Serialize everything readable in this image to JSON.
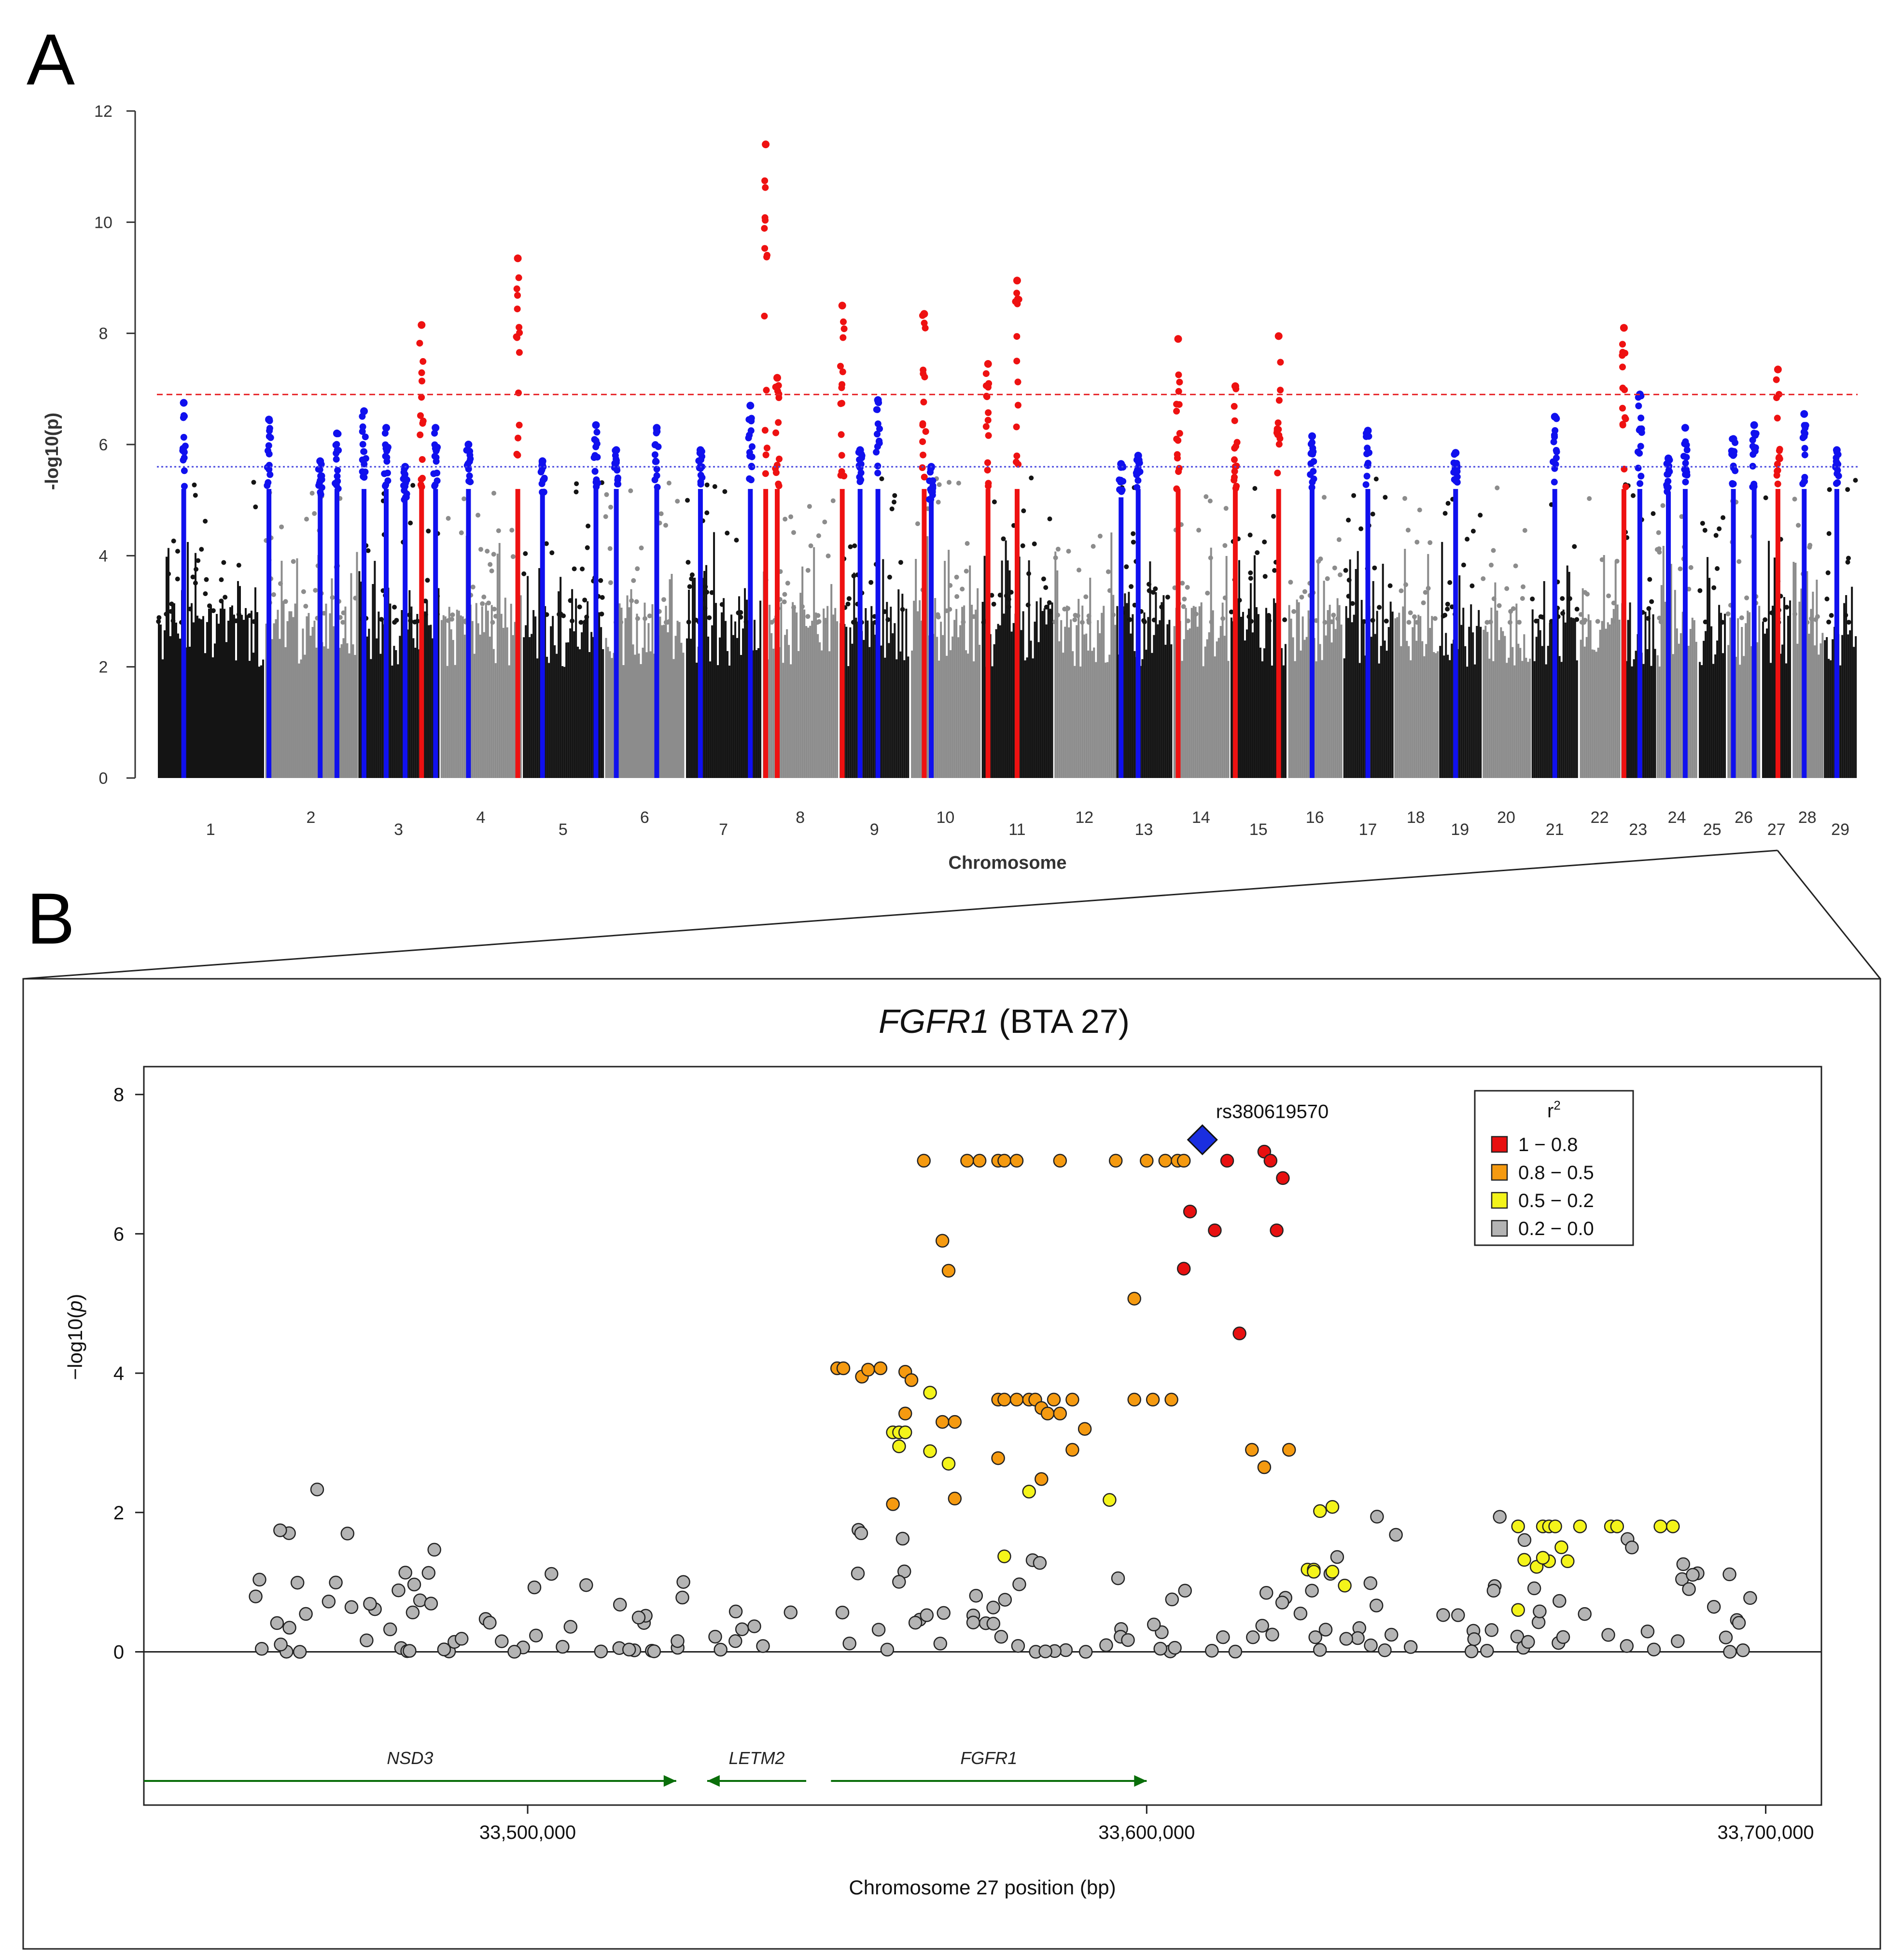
{
  "panel_a_label": "A",
  "panel_b_label": "B",
  "chart_data": [
    {
      "type": "scatter",
      "name": "manhattan",
      "ylabel": "-log10(p)",
      "xlabel": "Chromosome",
      "ylim": [
        0,
        12
      ],
      "yticks": [
        0,
        2,
        4,
        6,
        8,
        10,
        12
      ],
      "genome_wide_threshold": 6.9,
      "suggestive_threshold": 5.6,
      "threshold_colors": {
        "genome_wide": "#e8262a",
        "suggestive": "#4a4ae0"
      },
      "chromosomes": [
        "1",
        "2",
        "3",
        "4",
        "5",
        "6",
        "7",
        "8",
        "9",
        "10",
        "11",
        "12",
        "13",
        "14",
        "15",
        "16",
        "17",
        "18",
        "19",
        "20",
        "21",
        "22",
        "23",
        "24",
        "25",
        "26",
        "27",
        "28",
        "29"
      ],
      "colors": {
        "odd": "#141414",
        "even": "#8c8c8c",
        "blue_snps": "#1010ee",
        "red_snps": "#ee1111"
      },
      "highlighted_loci": [
        {
          "chr": "1",
          "pos": 0.25,
          "color": "blue",
          "max": 6.75
        },
        {
          "chr": "2",
          "pos": 0.05,
          "color": "blue",
          "max": 6.45
        },
        {
          "chr": "2",
          "pos": 0.6,
          "color": "blue",
          "max": 5.7
        },
        {
          "chr": "2",
          "pos": 0.78,
          "color": "blue",
          "max": 6.2
        },
        {
          "chr": "3",
          "pos": 0.08,
          "color": "blue",
          "max": 6.6
        },
        {
          "chr": "3",
          "pos": 0.35,
          "color": "blue",
          "max": 6.3
        },
        {
          "chr": "3",
          "pos": 0.58,
          "color": "blue",
          "max": 5.6
        },
        {
          "chr": "3",
          "pos": 0.78,
          "color": "red",
          "max": 8.15
        },
        {
          "chr": "3",
          "pos": 0.95,
          "color": "blue",
          "max": 6.3
        },
        {
          "chr": "4",
          "pos": 0.35,
          "color": "blue",
          "max": 6.0
        },
        {
          "chr": "4",
          "pos": 0.95,
          "color": "red",
          "max": 9.35
        },
        {
          "chr": "5",
          "pos": 0.25,
          "color": "blue",
          "max": 5.7
        },
        {
          "chr": "5",
          "pos": 0.9,
          "color": "blue",
          "max": 6.35
        },
        {
          "chr": "6",
          "pos": 0.15,
          "color": "blue",
          "max": 5.9
        },
        {
          "chr": "6",
          "pos": 0.65,
          "color": "blue",
          "max": 6.3
        },
        {
          "chr": "7",
          "pos": 0.2,
          "color": "blue",
          "max": 5.9
        },
        {
          "chr": "7",
          "pos": 0.85,
          "color": "blue",
          "max": 6.7
        },
        {
          "chr": "8",
          "pos": 0.05,
          "color": "red",
          "max": 11.4
        },
        {
          "chr": "8",
          "pos": 0.2,
          "color": "red",
          "max": 7.2
        },
        {
          "chr": "9",
          "pos": 0.05,
          "color": "red",
          "max": 8.5
        },
        {
          "chr": "9",
          "pos": 0.3,
          "color": "blue",
          "max": 5.9
        },
        {
          "chr": "9",
          "pos": 0.55,
          "color": "blue",
          "max": 6.8
        },
        {
          "chr": "10",
          "pos": 0.2,
          "color": "red",
          "max": 8.35
        },
        {
          "chr": "10",
          "pos": 0.3,
          "color": "blue",
          "max": 5.6
        },
        {
          "chr": "11",
          "pos": 0.1,
          "color": "red",
          "max": 7.45
        },
        {
          "chr": "11",
          "pos": 0.5,
          "color": "red",
          "max": 8.95
        },
        {
          "chr": "13",
          "pos": 0.1,
          "color": "blue",
          "max": 5.65
        },
        {
          "chr": "13",
          "pos": 0.4,
          "color": "blue",
          "max": 5.8
        },
        {
          "chr": "14",
          "pos": 0.1,
          "color": "red",
          "max": 7.9
        },
        {
          "chr": "15",
          "pos": 0.1,
          "color": "red",
          "max": 7.05
        },
        {
          "chr": "15",
          "pos": 0.85,
          "color": "red",
          "max": 7.95
        },
        {
          "chr": "16",
          "pos": 0.45,
          "color": "blue",
          "max": 6.15
        },
        {
          "chr": "17",
          "pos": 0.5,
          "color": "blue",
          "max": 6.25
        },
        {
          "chr": "19",
          "pos": 0.4,
          "color": "blue",
          "max": 5.85
        },
        {
          "chr": "21",
          "pos": 0.5,
          "color": "blue",
          "max": 6.5
        },
        {
          "chr": "23",
          "pos": 0.1,
          "color": "red",
          "max": 8.1
        },
        {
          "chr": "23",
          "pos": 0.55,
          "color": "blue",
          "max": 6.9
        },
        {
          "chr": "24",
          "pos": 0.3,
          "color": "blue",
          "max": 5.75
        },
        {
          "chr": "24",
          "pos": 0.7,
          "color": "blue",
          "max": 6.3
        },
        {
          "chr": "26",
          "pos": 0.2,
          "color": "blue",
          "max": 6.1
        },
        {
          "chr": "26",
          "pos": 0.8,
          "color": "blue",
          "max": 6.35
        },
        {
          "chr": "27",
          "pos": 0.55,
          "color": "red",
          "max": 7.35
        },
        {
          "chr": "28",
          "pos": 0.4,
          "color": "blue",
          "max": 6.55
        },
        {
          "chr": "29",
          "pos": 0.4,
          "color": "blue",
          "max": 5.9
        }
      ]
    },
    {
      "type": "scatter",
      "name": "regional",
      "title_gene": "FGFR1",
      "title_rest": " (BTA 27)",
      "xlabel": "Chromosome 27 position (bp)",
      "ylabel_prefix": "−log10(",
      "ylabel_p": "p",
      "ylabel_suffix": ")",
      "xlim": [
        33438000,
        33709000
      ],
      "ylim": [
        -2.2,
        8.4
      ],
      "xticks": [
        33500000,
        33600000,
        33700000
      ],
      "xtick_labels": [
        "33,500,000",
        "33,600,000",
        "33,700,000"
      ],
      "yticks": [
        0,
        2,
        4,
        6,
        8
      ],
      "lead_snp": {
        "name": "rs380619570",
        "pos": 33609000,
        "logp": 7.35,
        "color": "#1a2ee0"
      },
      "legend": {
        "title": "r",
        "title_sup": "2",
        "entries": [
          {
            "label": "1 − 0.8",
            "color": "#e81010"
          },
          {
            "label": "0.8 − 0.5",
            "color": "#f59a10"
          },
          {
            "label": "0.5 − 0.2",
            "color": "#f4f41a"
          },
          {
            "label": "0.2 − 0.0",
            "color": "#b4b4b4"
          }
        ]
      },
      "genes": [
        {
          "name": "NSD3",
          "start": 33438000,
          "end": 33524000,
          "direction": "right"
        },
        {
          "name": "LETM2",
          "start": 33529000,
          "end": 33545000,
          "direction": "left"
        },
        {
          "name": "FGFR1",
          "start": 33549000,
          "end": 33600000,
          "direction": "right"
        }
      ],
      "gene_color": "#0a6e0a",
      "red": [
        [
          33613,
          7.05
        ],
        [
          33619,
          7.18
        ],
        [
          33620,
          7.05
        ],
        [
          33622,
          6.8
        ],
        [
          33607,
          6.32
        ],
        [
          33611,
          6.05
        ],
        [
          33621,
          6.05
        ],
        [
          33606,
          5.5
        ],
        [
          33615,
          4.57
        ]
      ],
      "orange": [
        [
          33564,
          7.05
        ],
        [
          33571,
          7.05
        ],
        [
          33573,
          7.05
        ],
        [
          33576,
          7.05
        ],
        [
          33577,
          7.05
        ],
        [
          33579,
          7.05
        ],
        [
          33586,
          7.05
        ],
        [
          33595,
          7.05
        ],
        [
          33600,
          7.05
        ],
        [
          33603,
          7.05
        ],
        [
          33605,
          7.05
        ],
        [
          33606,
          7.05
        ],
        [
          33567,
          5.9
        ],
        [
          33568,
          5.47
        ],
        [
          33598,
          5.07
        ],
        [
          33550,
          4.07
        ],
        [
          33551,
          4.07
        ],
        [
          33554,
          3.95
        ],
        [
          33555,
          4.05
        ],
        [
          33557,
          4.07
        ],
        [
          33561,
          4.02
        ],
        [
          33562,
          3.9
        ],
        [
          33576,
          3.62
        ],
        [
          33577,
          3.62
        ],
        [
          33579,
          3.62
        ],
        [
          33581,
          3.62
        ],
        [
          33582,
          3.62
        ],
        [
          33583,
          3.5
        ],
        [
          33584,
          3.42
        ],
        [
          33585,
          3.62
        ],
        [
          33586,
          3.42
        ],
        [
          33588,
          3.62
        ],
        [
          33598,
          3.62
        ],
        [
          33601,
          3.62
        ],
        [
          33604,
          3.62
        ],
        [
          33567,
          3.3
        ],
        [
          33569,
          3.3
        ],
        [
          33590,
          3.2
        ],
        [
          33561,
          3.42
        ],
        [
          33588,
          2.9
        ],
        [
          33576,
          2.78
        ],
        [
          33583,
          2.48
        ],
        [
          33569,
          2.2
        ],
        [
          33559,
          2.12
        ],
        [
          33617,
          2.9
        ],
        [
          33623,
          2.9
        ],
        [
          33619,
          2.65
        ]
      ],
      "yellow": [
        [
          33565,
          3.72
        ],
        [
          33559,
          3.15
        ],
        [
          33560,
          3.15
        ],
        [
          33561,
          3.15
        ],
        [
          33560,
          2.95
        ],
        [
          33565,
          2.88
        ],
        [
          33568,
          2.7
        ],
        [
          33581,
          2.3
        ],
        [
          33594,
          2.18
        ],
        [
          33577,
          1.37
        ],
        [
          33628,
          2.02
        ],
        [
          33630,
          2.08
        ],
        [
          33626,
          1.18
        ],
        [
          33627,
          1.18
        ],
        [
          33627,
          1.15
        ],
        [
          33630,
          1.15
        ],
        [
          33632,
          0.95
        ],
        [
          33660,
          1.8
        ],
        [
          33664,
          1.8
        ],
        [
          33665,
          1.8
        ],
        [
          33666,
          1.8
        ],
        [
          33670,
          1.8
        ],
        [
          33675,
          1.8
        ],
        [
          33676,
          1.8
        ],
        [
          33683,
          1.8
        ],
        [
          33685,
          1.8
        ],
        [
          33665,
          1.3
        ],
        [
          33667,
          1.5
        ],
        [
          33668,
          1.3
        ],
        [
          33663,
          1.22
        ],
        [
          33664,
          1.35
        ],
        [
          33661,
          1.32
        ],
        [
          33660,
          0.6
        ]
      ],
      "grey_count": 180,
      "grey_seed": 27
    }
  ]
}
